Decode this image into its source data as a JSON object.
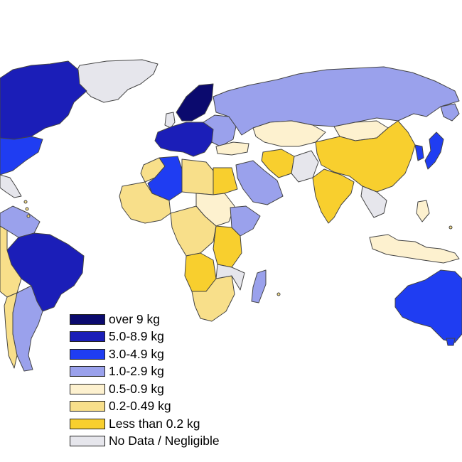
{
  "colors": {
    "over_9": "#0b0a6e",
    "5_0_8_9": "#1b1eb8",
    "3_0_4_9": "#1f3df2",
    "1_0_2_9": "#9aa1ec",
    "0_5_0_9": "#fdf1cf",
    "0_2_0_49": "#f8df8a",
    "lt_0_2": "#f8cf2e",
    "no_data": "#e6e6ec",
    "ocean": "#ffffff"
  },
  "legend": {
    "items": [
      {
        "label": "over 9 kg",
        "color": "#0b0a6e"
      },
      {
        "label": "5.0-8.9 kg",
        "color": "#1b1eb8"
      },
      {
        "label": "3.0-4.9 kg",
        "color": "#1f3df2"
      },
      {
        "label": "1.0-2.9 kg",
        "color": "#9aa1ec"
      },
      {
        "label": "0.5-0.9 kg",
        "color": "#fdf1cf"
      },
      {
        "label": "0.2-0.49 kg",
        "color": "#f8df8a"
      },
      {
        "label": "Less than 0.2 kg",
        "color": "#f8cf2e"
      },
      {
        "label": "No Data / Negligible",
        "color": "#e6e6ec"
      }
    ]
  },
  "regions": [
    {
      "name": "canada",
      "category": "5_0_8_9"
    },
    {
      "name": "usa",
      "category": "3_0_4_9"
    },
    {
      "name": "greenland",
      "category": "no_data"
    },
    {
      "name": "scandinavia",
      "category": "over_9"
    },
    {
      "name": "western-europe",
      "category": "5_0_8_9"
    },
    {
      "name": "eastern-europe",
      "category": "1_0_2_9"
    },
    {
      "name": "russia",
      "category": "1_0_2_9"
    },
    {
      "name": "central-asia",
      "category": "0_5_0_9"
    },
    {
      "name": "china",
      "category": "lt_0_2"
    },
    {
      "name": "india",
      "category": "lt_0_2"
    },
    {
      "name": "japan",
      "category": "3_0_4_9"
    },
    {
      "name": "australia",
      "category": "3_0_4_9"
    },
    {
      "name": "brazil",
      "category": "5_0_8_9"
    },
    {
      "name": "argentina",
      "category": "1_0_2_9"
    },
    {
      "name": "algeria",
      "category": "3_0_4_9"
    },
    {
      "name": "saudi-arabia",
      "category": "1_0_2_9"
    },
    {
      "name": "madagascar",
      "category": "1_0_2_9"
    },
    {
      "name": "indonesia",
      "category": "0_5_0_9"
    }
  ]
}
